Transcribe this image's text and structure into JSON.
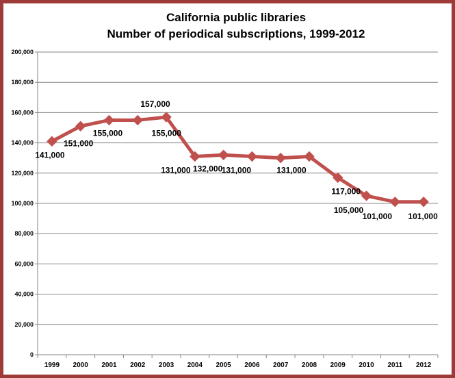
{
  "chart_data": {
    "type": "line",
    "title": "California public libraries",
    "subtitle": "Number of periodical subscriptions, 1999-2012",
    "xlabel": "",
    "ylabel": "",
    "categories": [
      "1999",
      "2000",
      "2001",
      "2002",
      "2003",
      "2004",
      "2005",
      "2006",
      "2007",
      "2008",
      "2009",
      "2010",
      "2011",
      "2012"
    ],
    "values": [
      141000,
      151000,
      155000,
      155000,
      157000,
      131000,
      132000,
      131000,
      130000,
      131000,
      117000,
      105000,
      101000,
      101000
    ],
    "data_labels": [
      "141,000",
      "151,000",
      "155,000",
      "155,000",
      "157,000",
      "131,000",
      "132,000",
      "131,000",
      "",
      "131,000",
      "117,000",
      "105,000",
      "101,000",
      "101,000"
    ],
    "ylim": [
      0,
      200000
    ],
    "y_ticks": [
      0,
      20000,
      40000,
      60000,
      80000,
      100000,
      120000,
      140000,
      160000,
      180000,
      200000
    ],
    "y_tick_labels": [
      "0",
      "20,000",
      "40,000",
      "60,000",
      "80,000",
      "100,000",
      "120,000",
      "140,000",
      "160,000",
      "180,000",
      "200,000"
    ],
    "grid": true,
    "line_color": "#c0504d",
    "border_color": "#9e3b38",
    "grid_color": "#868686"
  }
}
